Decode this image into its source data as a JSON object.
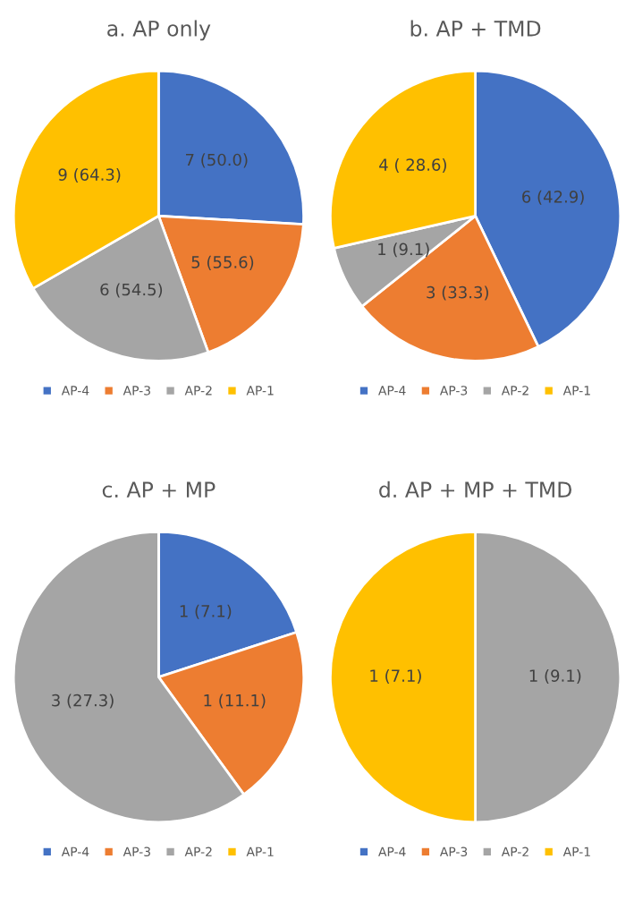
{
  "chart_data": [
    {
      "type": "pie",
      "title": "a. AP only",
      "categories": [
        "AP-4",
        "AP-3",
        "AP-2",
        "AP-1"
      ],
      "values": [
        7,
        5,
        6,
        9
      ],
      "colors": [
        "#4472c4",
        "#ed7d31",
        "#a5a5a5",
        "#ffc000"
      ],
      "value_labels": [
        "7 (50.0)",
        "5 (55.6)",
        "6 (54.5)",
        "9 (64.3)"
      ],
      "legend": "bottom"
    },
    {
      "type": "pie",
      "title": "b. AP + TMD",
      "categories": [
        "AP-4",
        "AP-3",
        "AP-2",
        "AP-1"
      ],
      "values": [
        6,
        3,
        1,
        4
      ],
      "colors": [
        "#4472c4",
        "#ed7d31",
        "#a5a5a5",
        "#ffc000"
      ],
      "value_labels": [
        "6 (42.9)",
        "3 (33.3)",
        "1 (9.1)",
        "4 ( 28.6)"
      ],
      "legend": "bottom"
    },
    {
      "type": "pie",
      "title": "c. AP + MP",
      "categories": [
        "AP-4",
        "AP-3",
        "AP-2",
        "AP-1"
      ],
      "values": [
        1,
        1,
        3,
        0
      ],
      "colors": [
        "#4472c4",
        "#ed7d31",
        "#a5a5a5",
        "#ffc000"
      ],
      "value_labels": [
        "1 (7.1)",
        "1 (11.1)",
        "3 (27.3)",
        null
      ],
      "legend": "bottom"
    },
    {
      "type": "pie",
      "title": "d. AP + MP + TMD",
      "categories": [
        "AP-4",
        "AP-3",
        "AP-2",
        "AP-1"
      ],
      "values": [
        0,
        0,
        1,
        1
      ],
      "colors": [
        "#4472c4",
        "#ed7d31",
        "#a5a5a5",
        "#ffc000"
      ],
      "value_labels": [
        null,
        null,
        "1 (9.1)",
        "1 (7.1)"
      ],
      "legend": "bottom"
    }
  ]
}
